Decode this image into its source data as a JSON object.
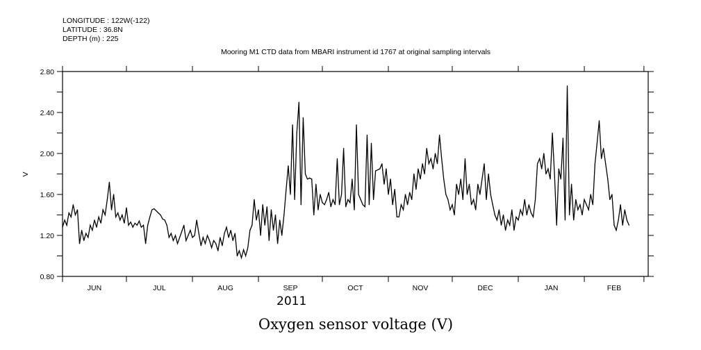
{
  "header": {
    "longitude": "LONGITUDE : 122W(-122)",
    "latitude": "LATITUDE : 36.8N",
    "depth": "DEPTH (m) : 225"
  },
  "chart_data": {
    "type": "line",
    "title": "Mooring M1 CTD data from MBARI instrument id 1767 at original sampling intervals",
    "xlabel": "Oxygen sensor voltage (V)",
    "ylabel": "V",
    "year_label": "2011",
    "x_units": "days since 2011-06-01",
    "xlim": [
      0,
      275
    ],
    "ylim": [
      0.8,
      2.8
    ],
    "y_tick_labels": [
      "0.80",
      "1.20",
      "1.60",
      "2.00",
      "2.40",
      "2.80"
    ],
    "y_tick_values": [
      0.8,
      1.2,
      1.6,
      2.0,
      2.4,
      2.8
    ],
    "y_minor_step": 0.2,
    "month_boundaries": [
      0,
      30,
      61,
      92,
      122,
      153,
      183,
      214,
      245,
      273
    ],
    "month_labels": [
      "JUN",
      "JUL",
      "AUG",
      "SEP",
      "OCT",
      "NOV",
      "DEC",
      "JAN",
      "FEB"
    ],
    "grid": false,
    "series": [
      {
        "name": "Oxygen sensor voltage",
        "color": "#000000",
        "x_start": 0,
        "x_step": 1,
        "values": [
          1.28,
          1.35,
          1.3,
          1.42,
          1.38,
          1.5,
          1.4,
          1.45,
          1.12,
          1.25,
          1.15,
          1.22,
          1.18,
          1.3,
          1.25,
          1.35,
          1.28,
          1.38,
          1.32,
          1.45,
          1.4,
          1.55,
          1.72,
          1.45,
          1.6,
          1.38,
          1.42,
          1.35,
          1.4,
          1.32,
          1.47,
          1.3,
          1.33,
          1.28,
          1.32,
          1.3,
          1.34,
          1.28,
          1.3,
          1.12,
          1.3,
          1.38,
          1.45,
          1.46,
          1.44,
          1.42,
          1.4,
          1.36,
          1.35,
          1.3,
          1.18,
          1.22,
          1.15,
          1.2,
          1.12,
          1.18,
          1.24,
          1.3,
          1.15,
          1.2,
          1.25,
          1.18,
          1.2,
          1.35,
          1.22,
          1.1,
          1.18,
          1.12,
          1.2,
          1.15,
          1.08,
          1.15,
          1.12,
          1.05,
          1.18,
          1.1,
          1.22,
          1.28,
          1.18,
          1.25,
          1.15,
          1.22,
          1.0,
          1.05,
          0.98,
          1.06,
          1.0,
          1.08,
          1.25,
          1.3,
          1.55,
          1.35,
          1.45,
          1.2,
          1.5,
          1.3,
          1.48,
          1.15,
          1.45,
          1.25,
          1.4,
          1.12,
          1.35,
          1.2,
          1.4,
          1.65,
          1.88,
          1.6,
          2.28,
          1.55,
          2.2,
          2.5,
          1.5,
          2.35,
          1.8,
          1.75,
          1.76,
          1.75,
          1.4,
          1.7,
          1.45,
          1.6,
          1.52,
          1.5,
          1.55,
          1.62,
          1.48,
          1.55,
          1.5,
          1.95,
          1.5,
          1.6,
          2.05,
          1.48,
          1.55,
          1.52,
          1.75,
          1.45,
          2.28,
          1.6,
          1.55,
          1.5,
          1.48,
          2.18,
          1.5,
          2.1,
          1.55,
          1.83,
          1.84,
          1.85,
          1.9,
          1.7,
          1.85,
          1.6,
          1.75,
          1.5,
          1.65,
          1.38,
          1.38,
          1.5,
          1.45,
          1.6,
          1.5,
          1.62,
          1.55,
          1.8,
          1.65,
          1.85,
          1.75,
          1.9,
          1.8,
          2.05,
          1.9,
          1.95,
          1.85,
          2.0,
          1.9,
          2.18,
          1.95,
          1.75,
          1.6,
          1.55,
          1.45,
          1.5,
          1.4,
          1.7,
          1.6,
          1.75,
          1.55,
          1.95,
          1.6,
          1.7,
          1.5,
          1.55,
          1.45,
          1.7,
          1.6,
          1.75,
          1.9,
          1.55,
          1.8,
          1.6,
          1.5,
          1.4,
          1.35,
          1.45,
          1.3,
          1.4,
          1.25,
          1.35,
          1.3,
          1.45,
          1.25,
          1.38,
          1.35,
          1.45,
          1.4,
          1.55,
          1.4,
          1.5,
          1.42,
          1.38,
          1.55,
          1.9,
          1.95,
          1.85,
          2.0,
          1.8,
          1.85,
          1.75,
          2.2,
          1.8,
          1.3,
          1.85,
          1.75,
          2.15,
          1.35,
          2.66,
          1.4,
          1.7,
          1.35,
          1.55,
          1.45,
          1.5,
          1.4,
          1.55,
          1.5,
          1.45,
          1.6,
          1.5,
          1.9,
          2.1,
          2.32,
          1.95,
          2.05,
          1.9,
          1.75,
          1.55,
          1.6,
          1.3,
          1.25,
          1.35,
          1.5,
          1.3,
          1.45,
          1.35,
          1.3
        ]
      }
    ]
  }
}
